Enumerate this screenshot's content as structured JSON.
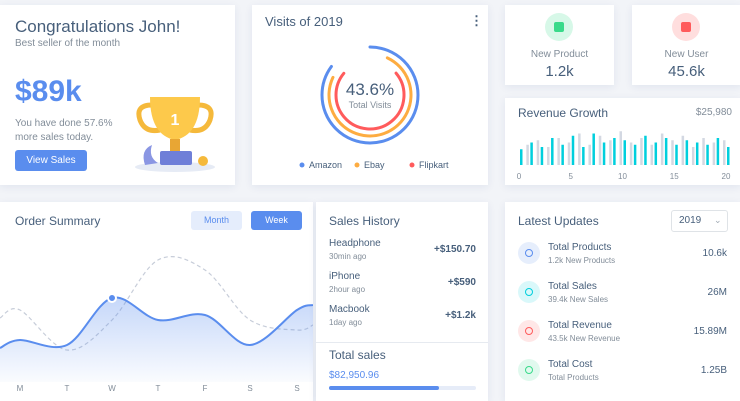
{
  "welcome": {
    "title": "Congratulations John!",
    "subtitle": "Best seller of the month",
    "amount": "$89k",
    "text_1": "You have done 57.6%",
    "text_2": "more sales today.",
    "button": "View Sales"
  },
  "visits": {
    "title": "Visits of 2019",
    "center_value": "43.6%",
    "center_label": "Total Visits",
    "series": [
      {
        "name": "Amazon",
        "color": "#5a8dee",
        "value": 85
      },
      {
        "name": "Ebay",
        "color": "#fdac41",
        "value": 75
      },
      {
        "name": "Flipkart",
        "color": "#ff5b5c",
        "value": 72
      }
    ]
  },
  "stats": [
    {
      "label": "New Product",
      "value": "1.2k",
      "color": "#39da8a"
    },
    {
      "label": "New User",
      "value": "45.6k",
      "color": "#ff5b5c"
    }
  ],
  "revenue": {
    "title": "Revenue Growth",
    "total": "$25,980",
    "xticks": [
      0,
      5,
      10,
      15,
      20
    ],
    "series": [
      {
        "color": "#d3d8e2",
        "values": [
          0,
          45,
          55,
          40,
          60,
          50,
          70,
          45,
          65,
          55,
          75,
          50,
          60,
          45,
          70,
          55,
          65,
          40,
          60,
          50,
          55
        ]
      },
      {
        "color": "#00cfdd",
        "values": [
          35,
          50,
          40,
          60,
          45,
          65,
          40,
          70,
          50,
          60,
          55,
          45,
          65,
          50,
          60,
          45,
          55,
          50,
          45,
          60,
          40
        ]
      }
    ]
  },
  "order_summary": {
    "title": "Order Summary",
    "buttons": [
      "Month",
      "Week"
    ],
    "categories": [
      "M",
      "T",
      "W",
      "T",
      "F",
      "S",
      "S"
    ],
    "series": [
      {
        "color": "#5a8dee",
        "values": [
          30,
          25,
          72,
          50,
          55,
          25,
          60
        ]
      },
      {
        "color": "#c7cdd9",
        "values": [
          60,
          20,
          50,
          110,
          100,
          50,
          40
        ]
      }
    ]
  },
  "sales_history": {
    "title": "Sales History",
    "items": [
      {
        "name": "Headphone",
        "time": "30min ago",
        "amount": "+$150.70"
      },
      {
        "name": "iPhone",
        "time": "2hour ago",
        "amount": "+$590"
      },
      {
        "name": "Macbook",
        "time": "1day ago",
        "amount": "+$1.2k"
      }
    ],
    "total_label": "Total sales",
    "total": "$82,950.96",
    "progress": 75
  },
  "latest": {
    "title": "Latest Updates",
    "year": "2019",
    "items": [
      {
        "title": "Total Products",
        "subtitle": "1.2k New Products",
        "value": "10.6k",
        "color": "#5a8dee"
      },
      {
        "title": "Total Sales",
        "subtitle": "39.4k New Sales",
        "value": "26M",
        "color": "#00cfdd"
      },
      {
        "title": "Total Revenue",
        "subtitle": "43.5k New Revenue",
        "value": "15.89M",
        "color": "#ff5b5c"
      },
      {
        "title": "Total Cost",
        "subtitle": "Total Products",
        "value": "1.25B",
        "color": "#39da8a"
      }
    ]
  }
}
